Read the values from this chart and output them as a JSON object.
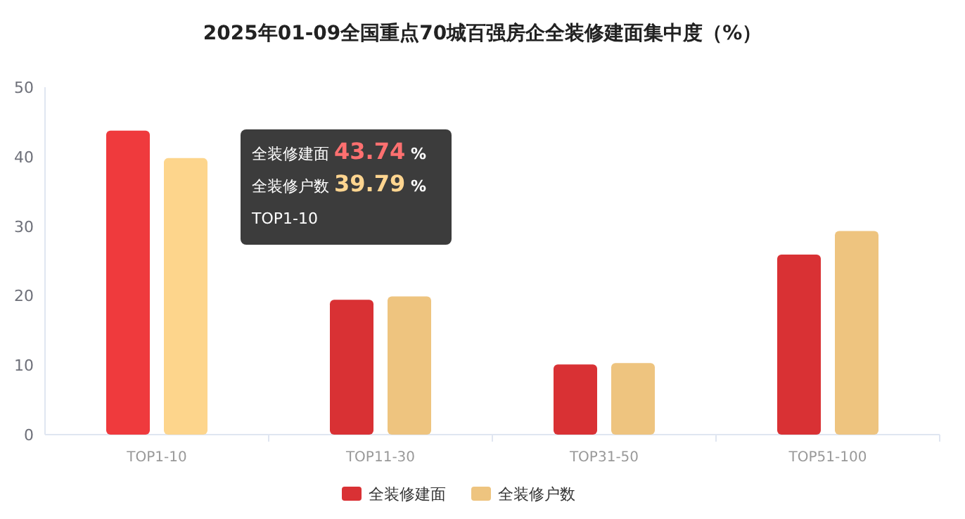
{
  "chart_data": {
    "type": "bar",
    "title": "2025年01-09全国重点70城百强房企全装修建面集中度（%）",
    "categories": [
      "TOP1-10",
      "TOP11-30",
      "TOP31-50",
      "TOP51-100"
    ],
    "series": [
      {
        "name": "全装修建面",
        "color": "#d93134",
        "colors": [
          "#ef3a3d",
          "#d93134",
          "#d93134",
          "#d93134"
        ],
        "values": [
          43.74,
          19.4,
          10.1,
          25.9
        ]
      },
      {
        "name": "全装修户数",
        "color": "#eec47f",
        "colors": [
          "#fdd58c",
          "#eec47f",
          "#eec47f",
          "#eec47f"
        ],
        "values": [
          39.79,
          19.9,
          10.3,
          29.3
        ]
      }
    ],
    "annotations": [
      "全装修建面 43.74 %",
      "全装修户数 39.79 %",
      "TOP1-10"
    ],
    "ylim": [
      0,
      50
    ],
    "yticks": [
      0,
      10,
      20,
      30,
      40,
      50
    ],
    "grid": false,
    "legend": "bottom"
  }
}
